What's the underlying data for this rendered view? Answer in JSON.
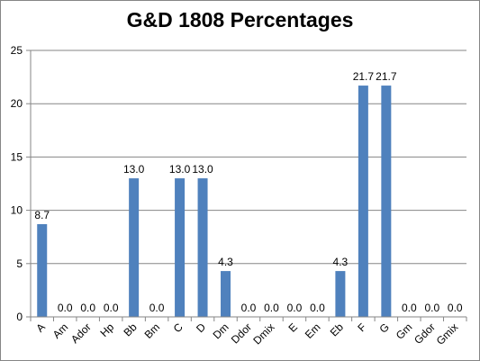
{
  "chart_data": {
    "type": "bar",
    "title": "G&D 1808 Percentages",
    "xlabel": "",
    "ylabel": "",
    "ylim": [
      0,
      25
    ],
    "yticks": [
      0,
      5,
      10,
      15,
      20,
      25
    ],
    "grid": true,
    "legend": "none",
    "bar_color": "#4F81BD",
    "categories": [
      "A",
      "Am",
      "Ador",
      "Hp",
      "Bb",
      "Bm",
      "C",
      "D",
      "Dm",
      "Ddor",
      "Dmix",
      "E",
      "Em",
      "Eb",
      "F",
      "G",
      "Gm",
      "Gdor",
      "Gmix"
    ],
    "values": [
      8.7,
      0.0,
      0.0,
      0.0,
      13.0,
      0.0,
      13.0,
      13.0,
      4.3,
      0.0,
      0.0,
      0.0,
      0.0,
      4.3,
      21.7,
      21.7,
      0.0,
      0.0,
      0.0
    ],
    "data_labels": [
      "8.7",
      "0.0",
      "0.0",
      "0.0",
      "13.0",
      "0.0",
      "13.0",
      "13.0",
      "4.3",
      "0.0",
      "0.0",
      "0.0",
      "0.0",
      "4.3",
      "21.7",
      "21.7",
      "0.0",
      "0.0",
      "0.0"
    ]
  }
}
